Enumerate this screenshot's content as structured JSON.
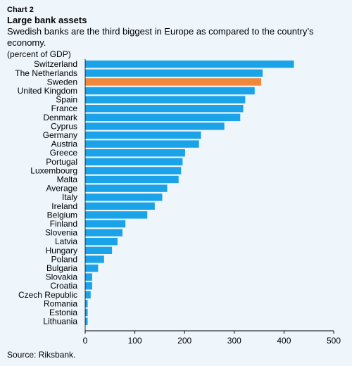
{
  "chart_label": "Chart 2",
  "title": "Large bank assets",
  "subtitle": "Swedish banks are the third biggest in Europe as compared to the country’s economy.",
  "unit_label": "(percent of GDP)",
  "source": "Source: Riksbank.",
  "colors": {
    "default": "#1aa3e8",
    "highlight": "#f0873a",
    "background": "#eef6fc"
  },
  "chart_data": {
    "type": "bar",
    "orientation": "horizontal",
    "title": "Large bank assets",
    "xlim": [
      0,
      500
    ],
    "xticks": [
      0,
      100,
      200,
      300,
      400,
      500
    ],
    "grid": false,
    "highlight": "Sweden",
    "categories": [
      "Switzerland",
      "The Netherlands",
      "Sweden",
      "United Kingdom",
      "Spain",
      "France",
      "Denmark",
      "Cyprus",
      "Germany",
      "Austria",
      "Greece",
      "Portugal",
      "Luxembourg",
      "Malta",
      "Average",
      "Italy",
      "Ireland",
      "Belgium",
      "Finland",
      "Slovenia",
      "Latvia",
      "Hungary",
      "Poland",
      "Bulgaria",
      "Slovakia",
      "Croatia",
      "Czech Republic",
      "Romania",
      "Estonia",
      "Lithuania"
    ],
    "values": [
      420,
      357,
      354,
      341,
      322,
      318,
      312,
      280,
      233,
      229,
      201,
      196,
      193,
      188,
      165,
      155,
      140,
      125,
      81,
      75,
      65,
      54,
      38,
      26,
      14,
      14,
      11,
      5,
      5,
      5
    ]
  }
}
